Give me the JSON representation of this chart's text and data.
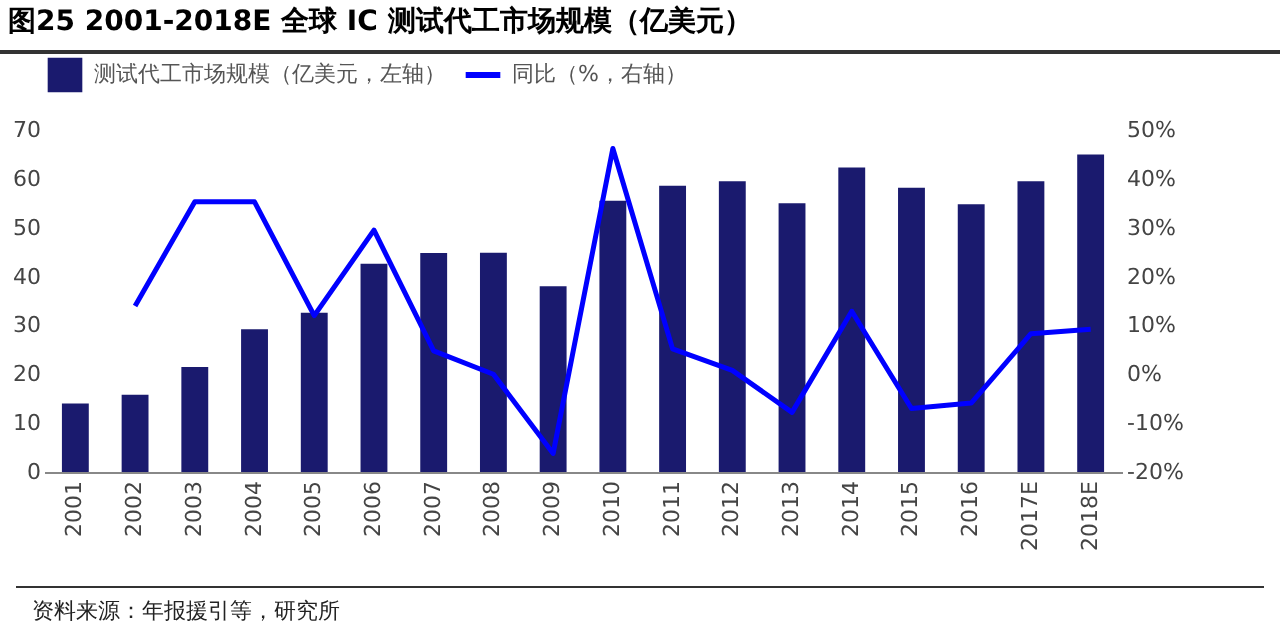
{
  "chart_data": {
    "type": "bar",
    "title": "图25  2001-2018E 全球 IC 测试代工市场规模（亿美元）",
    "categories": [
      "2001",
      "2002",
      "2003",
      "2004",
      "2005",
      "2006",
      "2007",
      "2008",
      "2009",
      "2010",
      "2011",
      "2012",
      "2013",
      "2014",
      "2015",
      "2016",
      "2017E",
      "2018E"
    ],
    "series": [
      {
        "name": "测试代工市场规模（亿美元，左轴）",
        "color": "#1a1a6e",
        "values": [
          14,
          15.8,
          21.5,
          29.2,
          32.6,
          42.6,
          44.8,
          44.9,
          38,
          55.5,
          58.6,
          59.5,
          55,
          62.3,
          58.2,
          54.8,
          59.5,
          65
        ]
      },
      {
        "name": "同比（%，右轴）",
        "type": "line",
        "axis": "y2",
        "color": "#0000ff",
        "values": [
          null,
          14,
          35.3,
          35.3,
          12,
          29.5,
          4.8,
          0,
          -16.2,
          46.2,
          5.2,
          0.8,
          -7.8,
          12.9,
          -7,
          -5.9,
          8.3,
          9.2
        ]
      }
    ],
    "ylim": [
      0,
      70
    ],
    "yticks": [
      0,
      10,
      20,
      30,
      40,
      50,
      60,
      70
    ],
    "y2lim": [
      -20,
      50
    ],
    "y2ticks": [
      {
        "value": -20,
        "label": "-20%"
      },
      {
        "value": -10,
        "label": "-10%"
      },
      {
        "value": 0,
        "label": "0%"
      },
      {
        "value": 10,
        "label": "10%"
      },
      {
        "value": 20,
        "label": "20%"
      },
      {
        "value": 30,
        "label": "30%"
      },
      {
        "value": 40,
        "label": "40%"
      },
      {
        "value": 50,
        "label": "50%"
      }
    ],
    "grid": false,
    "legend": "top",
    "marker": "none",
    "line_style": "solid",
    "annotations": [
      "资料来源：年报援引等，研究所"
    ]
  }
}
